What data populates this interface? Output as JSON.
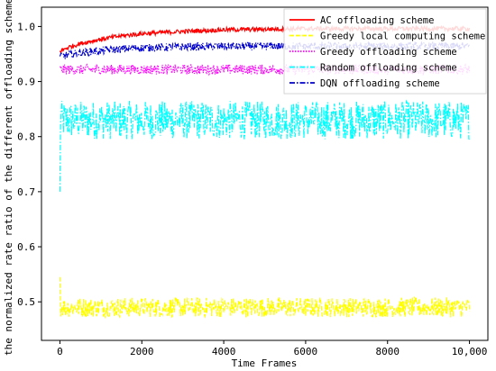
{
  "chart_data": {
    "type": "line",
    "xlabel": "Time Frames",
    "ylabel": "the normalized rate ratio of the different offloading schemes",
    "xlim": [
      -450,
      10450
    ],
    "ylim": [
      0.43,
      1.035
    ],
    "x_ticks": [
      0,
      2000,
      4000,
      6000,
      8000,
      10000
    ],
    "x_tick_labels": [
      "0",
      "2000",
      "4000",
      "6000",
      "8000",
      "10,000"
    ],
    "y_ticks": [
      0.5,
      0.6,
      0.7,
      0.8,
      0.9,
      1.0
    ],
    "y_tick_labels": [
      "0.5",
      "0.6",
      "0.7",
      "0.8",
      "0.9",
      "1.0"
    ],
    "grid": false,
    "legend_position": "top-right",
    "series": [
      {
        "name": "AC offloading scheme",
        "color": "#ff0000",
        "style": "solid",
        "x": [
          0,
          200,
          500,
          1000,
          1500,
          2000,
          3000,
          4000,
          5000,
          6000,
          7000,
          8000,
          9000,
          10000
        ],
        "y": [
          0.955,
          0.962,
          0.969,
          0.977,
          0.983,
          0.987,
          0.991,
          0.994,
          0.995,
          0.996,
          0.996,
          0.996,
          0.996,
          0.996
        ]
      },
      {
        "name": "Greedy local computing scheme",
        "color": "#ffff00",
        "style": "dashed",
        "x": [
          0,
          2000,
          4000,
          6000,
          8000,
          10000
        ],
        "y": [
          0.49,
          0.49,
          0.49,
          0.49,
          0.49,
          0.49
        ]
      },
      {
        "name": "Greedy offloading scheme",
        "color": "#ff00ff",
        "style": "dotted",
        "x": [
          0,
          2000,
          4000,
          6000,
          8000,
          10000
        ],
        "y": [
          0.922,
          0.922,
          0.922,
          0.922,
          0.922,
          0.922
        ]
      },
      {
        "name": "Random offloading scheme",
        "color": "#00ffff",
        "style": "dashdot",
        "x": [
          0,
          2000,
          4000,
          6000,
          8000,
          10000
        ],
        "y": [
          0.83,
          0.83,
          0.83,
          0.83,
          0.83,
          0.83
        ]
      },
      {
        "name": "DQN offloading scheme",
        "color": "#0000cc",
        "style": "dashdot",
        "x": [
          0,
          200,
          500,
          1000,
          1500,
          2000,
          3000,
          4000,
          5000,
          6000,
          7000,
          8000,
          9000,
          10000
        ],
        "y": [
          0.945,
          0.948,
          0.952,
          0.956,
          0.959,
          0.961,
          0.963,
          0.964,
          0.964,
          0.964,
          0.964,
          0.964,
          0.964,
          0.964
        ]
      }
    ]
  }
}
